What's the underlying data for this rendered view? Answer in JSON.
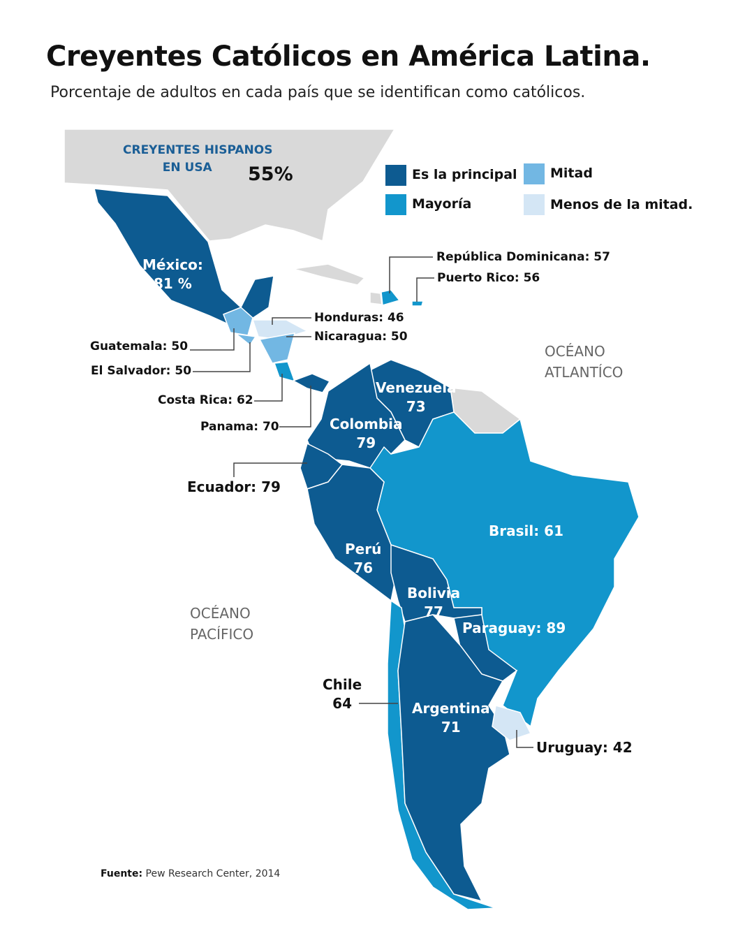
{
  "title": "Creyentes Católicos en América Latina.",
  "subtitle": "Porcentaje de adultos en cada país que se identifican como católicos.",
  "colors": {
    "principal": "#0d5b91",
    "mayoria": "#1296cc",
    "mitad": "#72b7e3",
    "menos": "#d4e6f5",
    "other": "#d9d9d9"
  },
  "legend": [
    {
      "label": "Es la principal",
      "color": "#0d5b91"
    },
    {
      "label": "Mayoría",
      "color": "#1296cc"
    },
    {
      "label": "Mitad",
      "color": "#72b7e3"
    },
    {
      "label": "Menos de la mitad.",
      "color": "#d4e6f5"
    }
  ],
  "usa": {
    "label_line1": "CREYENTES HISPANOS",
    "label_line2": "EN USA",
    "value": "55%"
  },
  "oceans": {
    "atlantic_1": "OCÉANO",
    "atlantic_2": "ATLANTÍCO",
    "pacific_1": "OCÉANO",
    "pacific_2": "PACÍFICO"
  },
  "countries": {
    "mexico": {
      "name": "México:",
      "value": "81 %",
      "category": "principal"
    },
    "guatemala": {
      "label": "Guatemala: 50",
      "category": "mitad"
    },
    "el_salvador": {
      "label": "El Salvador: 50",
      "category": "mitad"
    },
    "honduras": {
      "label": "Honduras: 46",
      "category": "menos"
    },
    "nicaragua": {
      "label": "Nicaragua: 50",
      "category": "mitad"
    },
    "costa_rica": {
      "label": "Costa Rica: 62",
      "category": "mayoria"
    },
    "panama": {
      "label": "Panama: 70",
      "category": "principal"
    },
    "dominican_republic": {
      "label": "República Dominicana: 57",
      "category": "mayoria"
    },
    "puerto_rico": {
      "label": "Puerto Rico: 56",
      "category": "mayoria"
    },
    "venezuela": {
      "name": "Venezuela",
      "value": "73",
      "category": "principal"
    },
    "colombia": {
      "name": "Colombia",
      "value": "79",
      "category": "principal"
    },
    "ecuador": {
      "label": "Ecuador: 79",
      "category": "principal"
    },
    "peru": {
      "name": "Perú",
      "value": "76",
      "category": "principal"
    },
    "brasil": {
      "label": "Brasil: 61",
      "category": "mayoria"
    },
    "bolivia": {
      "name": "Bolivia",
      "value": "77",
      "category": "principal"
    },
    "paraguay": {
      "label": "Paraguay: 89",
      "category": "principal"
    },
    "chile": {
      "name": "Chile",
      "value": "64",
      "category": "mayoria"
    },
    "argentina": {
      "name": "Argentina",
      "value": "71",
      "category": "principal"
    },
    "uruguay": {
      "label": "Uruguay: 42",
      "category": "menos"
    }
  },
  "source": {
    "label": "Fuente:",
    "text": "Pew Research Center, 2014"
  }
}
